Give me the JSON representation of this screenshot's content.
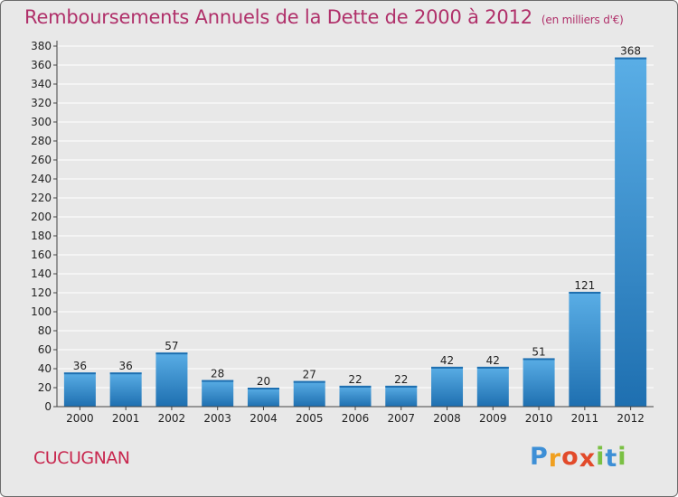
{
  "chart_data": {
    "type": "bar",
    "title": "Remboursements Annuels de la Dette de 2000 à 2012",
    "unit_note": "(en milliers d'€)",
    "categories": [
      "2000",
      "2001",
      "2002",
      "2003",
      "2004",
      "2005",
      "2006",
      "2007",
      "2008",
      "2009",
      "2010",
      "2011",
      "2012"
    ],
    "values": [
      36,
      36,
      57,
      28,
      20,
      27,
      22,
      22,
      42,
      42,
      51,
      121,
      368
    ],
    "ylim": [
      0,
      380
    ],
    "ytick_step": 20,
    "grid": true,
    "colors": {
      "bar_light": "#5aaee6",
      "bar_dark": "#1e6fb0",
      "grid": "#ffffff",
      "background": "#e8e8e8",
      "title": "#b0306a"
    }
  },
  "commune": "CUCUGNAN",
  "logo": {
    "letters": [
      "P",
      "r",
      "o",
      "x",
      "i",
      "t",
      "i"
    ],
    "colors": [
      "#3d8fd6",
      "#f0a020",
      "#e24a2a",
      "#e24a2a",
      "#7ac043",
      "#3d8fd6",
      "#7ac043"
    ]
  }
}
